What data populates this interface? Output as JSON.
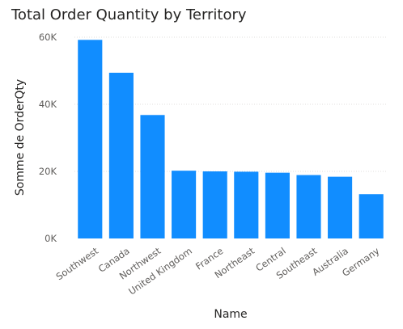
{
  "chart_data": {
    "type": "bar",
    "title": "Total Order Quantity by Territory",
    "xlabel": "Name",
    "ylabel": "Somme de OrderQty",
    "categories": [
      "Southwest",
      "Canada",
      "Northwest",
      "United Kingdom",
      "France",
      "Northeast",
      "Central",
      "Southeast",
      "Australia",
      "Germany"
    ],
    "series": [
      {
        "values": [
          59200,
          49400,
          36800,
          20200,
          20000,
          19900,
          19600,
          18900,
          18400,
          13200
        ]
      }
    ],
    "ylim": [
      0,
      60000
    ],
    "yticks": [
      0,
      20000,
      40000,
      60000
    ],
    "ytick_labels": [
      "0K",
      "20K",
      "40K",
      "60K"
    ],
    "grid": true,
    "legend": "none",
    "bar_color": "#118DFF",
    "grid_color": "#e1dfdd"
  }
}
